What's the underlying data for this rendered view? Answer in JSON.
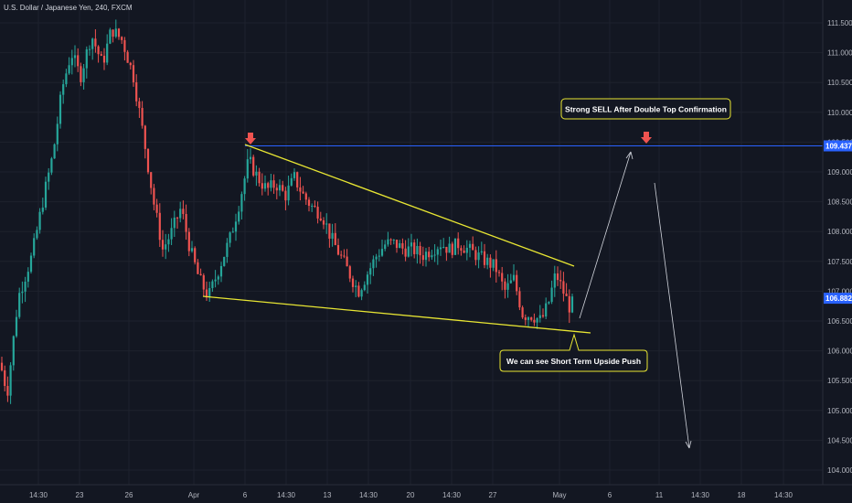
{
  "colors": {
    "background": "#131722",
    "grid": "#1e222d",
    "up": "#26a69a",
    "down": "#ef5350",
    "trendline": "#e8e633",
    "resistance": "#2962ff",
    "arrow": "#d1d4dc",
    "callout_border": "#e8e633",
    "marker": "#ef5350",
    "price_tag": "#2962ff"
  },
  "chart_data": {
    "type": "candlestick",
    "title": "U.S. Dollar / Japanese Yen, 240, FXCM",
    "ylim": [
      103.8,
      111.6
    ],
    "y_ticks": [
      "111.500",
      "111.000",
      "110.500",
      "110.000",
      "109.500",
      "109.000",
      "108.500",
      "108.000",
      "107.500",
      "107.000",
      "106.500",
      "106.000",
      "105.500",
      "105.000",
      "104.500",
      "104.000"
    ],
    "x_ticks": [
      "14:30",
      "23",
      "26",
      "Apr",
      "6",
      "14:30",
      "13",
      "14:30",
      "20",
      "14:30",
      "27",
      "May",
      "6",
      "11",
      "14:30",
      "18",
      "14:30"
    ],
    "price_tags": [
      {
        "label": "109.437",
        "value": 109.437,
        "color": "#2962ff"
      },
      {
        "label": "106.882",
        "value": 106.882,
        "color": "#2962ff"
      }
    ],
    "resistance_level": 109.437,
    "annotations": [
      {
        "text": "Strong SELL After Double Top Confirmation"
      },
      {
        "text": "We can see Short Term Upside Push"
      }
    ],
    "grid": true,
    "legend": "top-left"
  }
}
